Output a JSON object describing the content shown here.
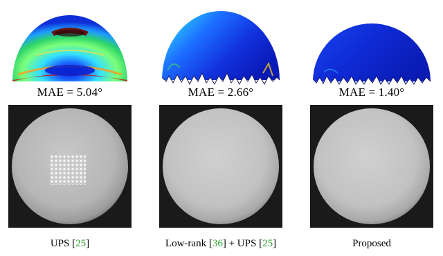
{
  "panels": [
    {
      "mae_prefix": "MAE = ",
      "mae_value": "5.04°",
      "caption": {
        "text": "UPS",
        "cites": [
          "[",
          "25",
          "]"
        ]
      },
      "error_map_icon": "error-map-sphere",
      "has_specular_artifact": true
    },
    {
      "mae_prefix": "MAE = ",
      "mae_value": "2.66°",
      "caption": {
        "text": "Low-rank",
        "cite_a": "36",
        "mid": "+ UPS",
        "cite_b": "25"
      },
      "error_map_icon": "error-map-sphere",
      "has_specular_artifact": false
    },
    {
      "mae_prefix": "MAE = ",
      "mae_value": "1.40°",
      "caption": {
        "text": "Proposed"
      },
      "error_map_icon": "error-map-sphere",
      "has_specular_artifact": false
    }
  ],
  "colors": {
    "citation": "#2fa12f",
    "sphere_background": "#1a1a1a"
  }
}
